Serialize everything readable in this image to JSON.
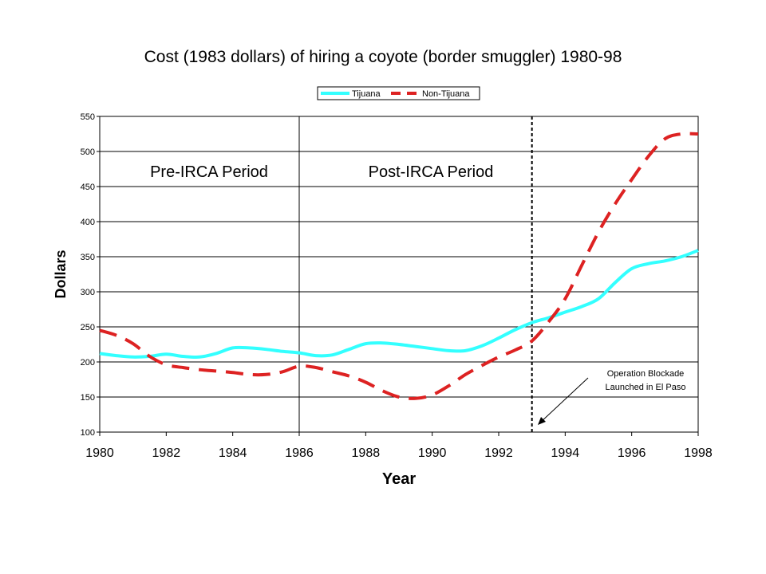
{
  "chart_data": {
    "type": "line",
    "title": "Cost (1983 dollars) of hiring a coyote (border smuggler) 1980-98",
    "xlabel": "Year",
    "ylabel": "Dollars",
    "xlim": [
      1980,
      1998
    ],
    "ylim": [
      100,
      550
    ],
    "x_ticks": [
      1980,
      1982,
      1984,
      1986,
      1988,
      1990,
      1992,
      1994,
      1996,
      1998
    ],
    "y_ticks": [
      100,
      150,
      200,
      250,
      300,
      350,
      400,
      450,
      500,
      550
    ],
    "grid": "horizontal",
    "legend_position": "top-center",
    "series": [
      {
        "name": "Tijuana",
        "color": "#33ffff",
        "style": "solid",
        "x": [
          1980,
          1980.5,
          1981,
          1981.5,
          1982,
          1982.5,
          1983,
          1983.5,
          1984,
          1984.5,
          1985,
          1985.5,
          1986,
          1986.5,
          1987,
          1987.5,
          1988,
          1988.5,
          1989,
          1989.5,
          1990,
          1990.5,
          1991,
          1991.5,
          1992,
          1992.5,
          1993,
          1993.5,
          1994,
          1994.5,
          1995,
          1995.5,
          1996,
          1996.5,
          1997,
          1997.5,
          1998
        ],
        "y": [
          212,
          209,
          207,
          208,
          211,
          208,
          207,
          212,
          220,
          220,
          218,
          215,
          213,
          209,
          210,
          218,
          226,
          227,
          225,
          222,
          219,
          216,
          216,
          223,
          234,
          246,
          256,
          263,
          271,
          279,
          290,
          313,
          333,
          340,
          344,
          350,
          359
        ]
      },
      {
        "name": "Non-Tijuana",
        "color": "#dd2222",
        "style": "dashed",
        "x": [
          1980,
          1980.5,
          1981,
          1981.5,
          1982,
          1982.5,
          1983,
          1983.5,
          1984,
          1984.5,
          1985,
          1985.5,
          1986,
          1986.5,
          1987,
          1987.5,
          1988,
          1988.5,
          1989,
          1989.5,
          1990,
          1990.5,
          1991,
          1991.5,
          1992,
          1992.5,
          1993,
          1993.5,
          1994,
          1994.5,
          1995,
          1995.5,
          1996,
          1996.5,
          1997,
          1997.5,
          1998
        ],
        "y": [
          245,
          238,
          226,
          208,
          196,
          192,
          189,
          187,
          185,
          182,
          182,
          186,
          194,
          192,
          186,
          180,
          171,
          159,
          150,
          148,
          153,
          166,
          182,
          195,
          207,
          217,
          230,
          257,
          290,
          338,
          385,
          425,
          460,
          493,
          518,
          525,
          525
        ]
      }
    ],
    "annotations": {
      "pre_period": "Pre-IRCA Period",
      "post_period": "Post-IRCA Period",
      "event_line1": "Operation Blockade",
      "event_line2": "Launched in El Paso",
      "event_year": 1993,
      "irca_year": 1986
    }
  }
}
